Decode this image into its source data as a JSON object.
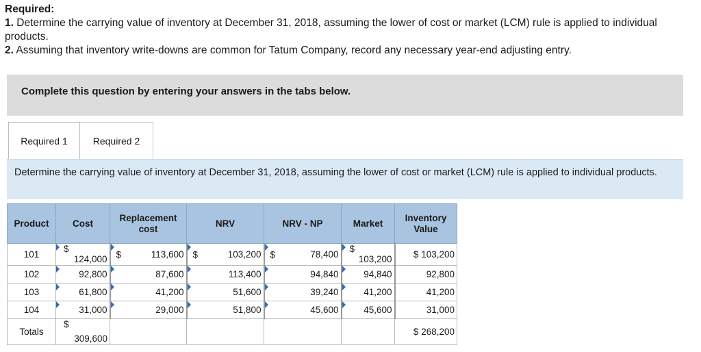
{
  "required": {
    "heading": "Required:",
    "items": [
      {
        "num": "1.",
        "text": "Determine the carrying value of inventory at December 31, 2018, assuming the lower of cost or market (LCM) rule is applied to individual products."
      },
      {
        "num": "2.",
        "text": "Assuming that inventory write-downs are common for Tatum Company, record any necessary year-end adjusting entry."
      }
    ]
  },
  "banner": "Complete this question by entering your answers in the tabs below.",
  "tabs": [
    {
      "label": "Required 1",
      "active": true
    },
    {
      "label": "Required 2",
      "active": false
    }
  ],
  "description": "Determine the carrying value of inventory at December 31, 2018, assuming the lower of cost or market (LCM) rule is applied to individual products.",
  "table": {
    "headers": [
      "Product",
      "Cost",
      "Replacement cost",
      "NRV",
      "NRV - NP",
      "Market",
      "Inventory Value"
    ],
    "rows": [
      {
        "product": "101",
        "cost": "124,000",
        "replacement": "113,600",
        "nrv": "103,200",
        "nrv_np": "78,400",
        "market": "103,200",
        "inventory": "103,200"
      },
      {
        "product": "102",
        "cost": "92,800",
        "replacement": "87,600",
        "nrv": "113,400",
        "nrv_np": "94,840",
        "market": "94,840",
        "inventory": "92,800"
      },
      {
        "product": "103",
        "cost": "61,800",
        "replacement": "41,200",
        "nrv": "51,600",
        "nrv_np": "39,240",
        "market": "41,200",
        "inventory": "41,200"
      },
      {
        "product": "104",
        "cost": "31,000",
        "replacement": "29,000",
        "nrv": "51,800",
        "nrv_np": "45,600",
        "market": "45,600",
        "inventory": "31,000"
      }
    ],
    "totals": {
      "label": "Totals",
      "cost": "309,600",
      "inventory": "268,200"
    },
    "currency": "$"
  }
}
